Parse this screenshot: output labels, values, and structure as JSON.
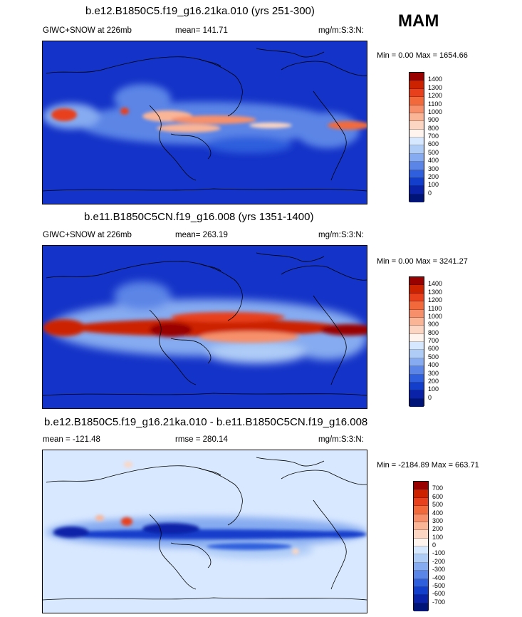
{
  "season": "MAM",
  "panels": [
    {
      "title": "b.e12.B1850C5.f19_g16.21ka.010 (yrs 251-300)",
      "left_text": "GIWC+SNOW at 226mb",
      "center_text": "mean= 141.71",
      "right_text": "mg/m:S:3:N:",
      "minmax": "Min =   0.00 Max = 1654.66",
      "colorbar_labels": [
        "1400",
        "1300",
        "1200",
        "1100",
        "1000",
        "900",
        "800",
        "700",
        "600",
        "500",
        "400",
        "300",
        "200",
        "100",
        "0"
      ],
      "colorbar_colors": [
        "#990000",
        "#cc2200",
        "#e8401c",
        "#f26a3c",
        "#f7906a",
        "#fab597",
        "#fcd6c2",
        "#fff5ee",
        "#d5e8ff",
        "#afccf7",
        "#86abf0",
        "#5b85e6",
        "#2f5fdd",
        "#123ecb",
        "#0a22a8",
        "#001478"
      ]
    },
    {
      "title": "b.e11.B1850C5CN.f19_g16.008 (yrs 1351-1400)",
      "left_text": "GIWC+SNOW at 226mb",
      "center_text": "mean= 263.19",
      "right_text": "mg/m:S:3:N:",
      "minmax": "Min =   0.00 Max = 3241.27",
      "colorbar_labels": [
        "1400",
        "1300",
        "1200",
        "1100",
        "1000",
        "900",
        "800",
        "700",
        "600",
        "500",
        "400",
        "300",
        "200",
        "100",
        "0"
      ],
      "colorbar_colors": [
        "#990000",
        "#cc2200",
        "#e8401c",
        "#f26a3c",
        "#f7906a",
        "#fab597",
        "#fcd6c2",
        "#fff5ee",
        "#d5e8ff",
        "#afccf7",
        "#86abf0",
        "#5b85e6",
        "#2f5fdd",
        "#123ecb",
        "#0a22a8",
        "#001478"
      ]
    },
    {
      "title": "b.e12.B1850C5.f19_g16.21ka.010 - b.e11.B1850C5CN.f19_g16.008",
      "left_text": "mean = -121.48",
      "center_text": "rmse = 280.14",
      "right_text": "mg/m:S:3:N:",
      "minmax": "Min = -2184.89 Max = 663.71",
      "colorbar_labels": [
        "700",
        "600",
        "500",
        "400",
        "300",
        "200",
        "100",
        "0",
        "-100",
        "-200",
        "-300",
        "-400",
        "-500",
        "-600",
        "-700"
      ],
      "colorbar_colors": [
        "#990000",
        "#cc2200",
        "#e8401c",
        "#f26a3c",
        "#f7906a",
        "#fab597",
        "#fcd6c2",
        "#fff5ee",
        "#d5e8ff",
        "#afccf7",
        "#86abf0",
        "#5b85e6",
        "#2f5fdd",
        "#123ecb",
        "#0a22a8",
        "#001478"
      ]
    }
  ],
  "field_colors": {
    "background_abs": "#1433c8",
    "background_diff": "#d8e8ff"
  }
}
